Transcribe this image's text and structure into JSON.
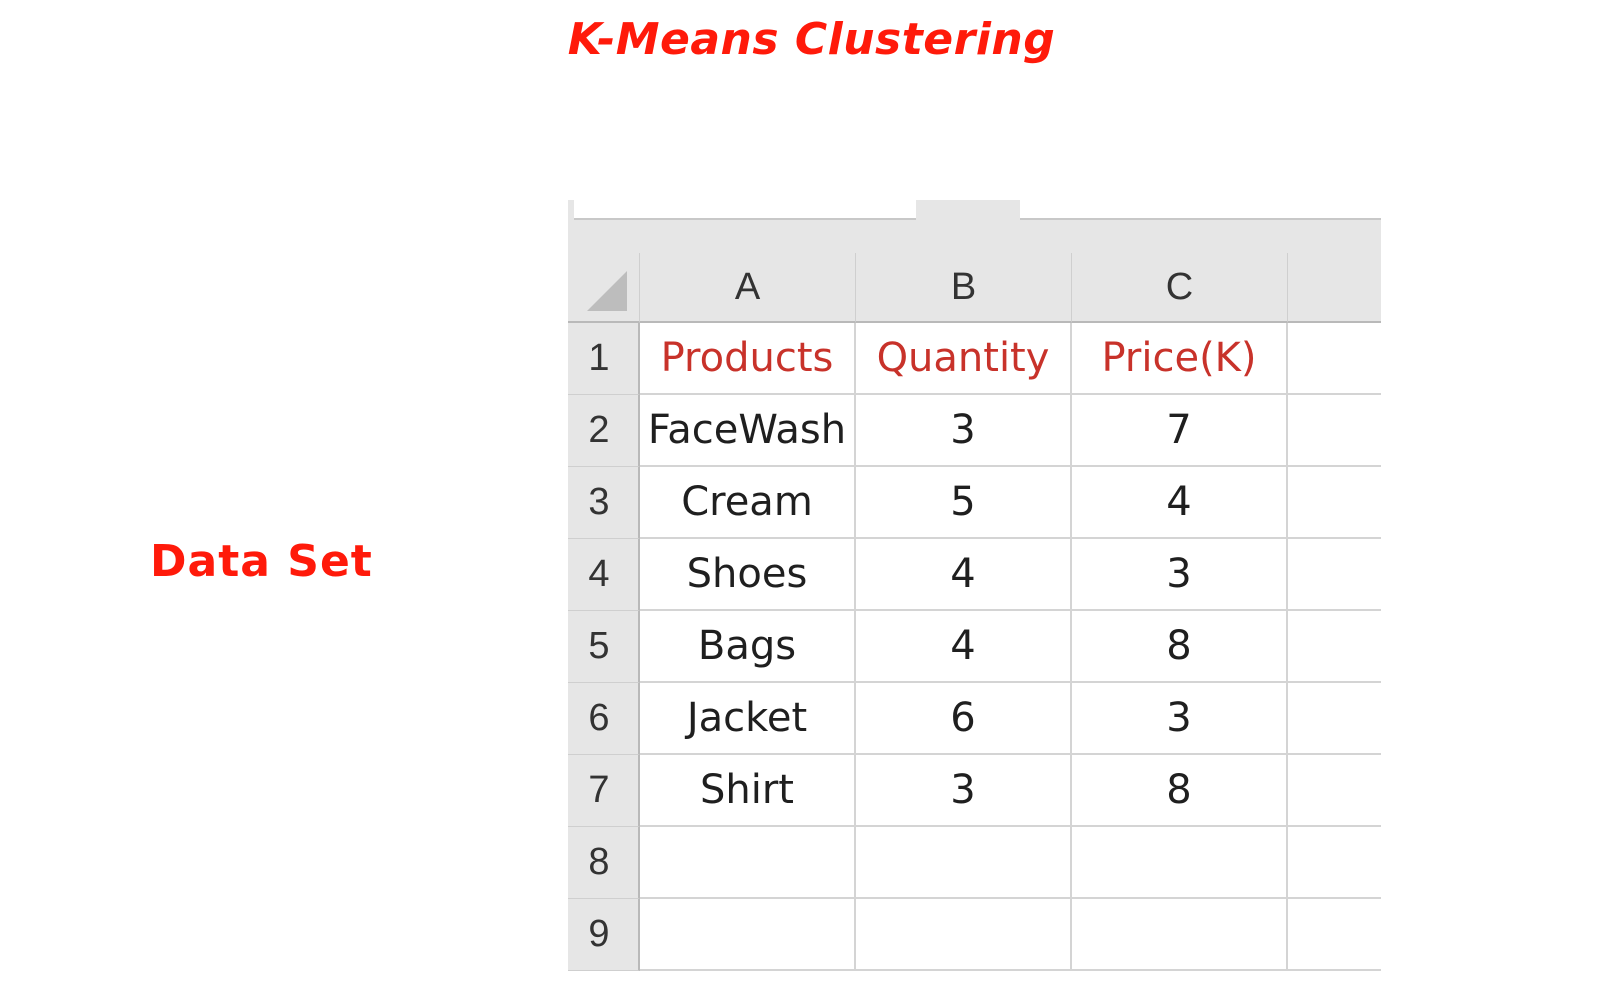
{
  "slide": {
    "title": "K-Means Clustering",
    "side_label": "Data Set"
  },
  "spreadsheet": {
    "column_headers": [
      "A",
      "B",
      "C"
    ],
    "row_numbers": [
      "1",
      "2",
      "3",
      "4",
      "5",
      "6",
      "7",
      "8",
      "9"
    ],
    "header_row": [
      "Products",
      "Quantity",
      "Price(K)"
    ],
    "rows": [
      [
        "FaceWash",
        "3",
        "7"
      ],
      [
        "Cream",
        "5",
        "4"
      ],
      [
        "Shoes",
        "4",
        "3"
      ],
      [
        "Bags",
        "4",
        "8"
      ],
      [
        "Jacket",
        "6",
        "3"
      ],
      [
        "Shirt",
        "3",
        "8"
      ],
      [
        "",
        "",
        ""
      ],
      [
        "",
        "",
        ""
      ]
    ]
  },
  "colors": {
    "title_red": "#ff1a0a",
    "header_text_red": "#c8322a",
    "grid_header_gray": "#e6e6e6"
  }
}
